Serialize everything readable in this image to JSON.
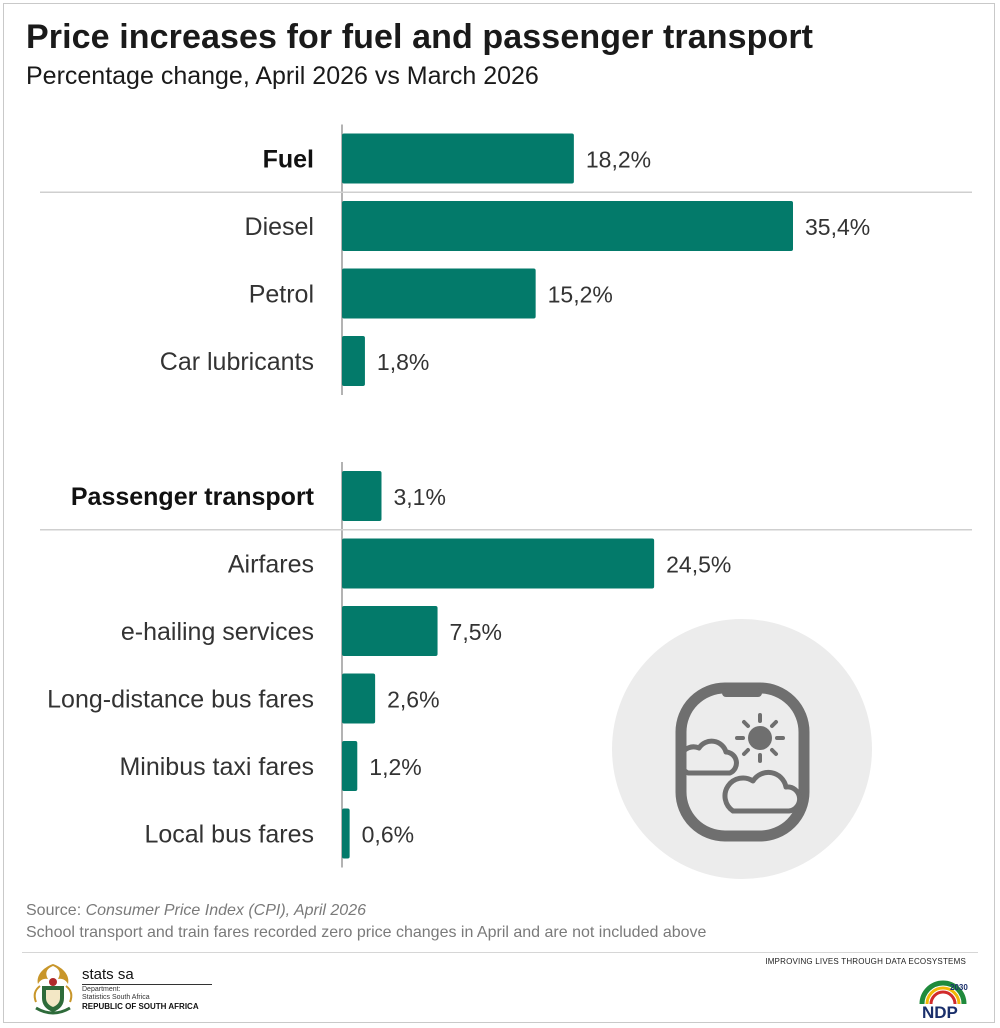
{
  "header": {
    "title": "Price increases for fuel and passenger transport",
    "subtitle": "Percentage change, April 2026 vs March 2026"
  },
  "chart_data": {
    "type": "bar",
    "orientation": "horizontal",
    "xlim": [
      0,
      35.4
    ],
    "groups": [
      {
        "header": {
          "label": "Fuel",
          "value": 18.2,
          "value_label": "18,2%"
        },
        "items": [
          {
            "label": "Diesel",
            "value": 35.4,
            "value_label": "35,4%"
          },
          {
            "label": "Petrol",
            "value": 15.2,
            "value_label": "15,2%"
          },
          {
            "label": "Car lubricants",
            "value": 1.8,
            "value_label": "1,8%"
          }
        ]
      },
      {
        "header": {
          "label": "Passenger transport",
          "value": 3.1,
          "value_label": "3,1%"
        },
        "items": [
          {
            "label": "Airfares",
            "value": 24.5,
            "value_label": "24,5%"
          },
          {
            "label": "e-hailing services",
            "value": 7.5,
            "value_label": "7,5%"
          },
          {
            "label": "Long-distance bus fares",
            "value": 2.6,
            "value_label": "2,6%"
          },
          {
            "label": "Minibus taxi fares",
            "value": 1.2,
            "value_label": "1,2%"
          },
          {
            "label": "Local bus fares",
            "value": 0.6,
            "value_label": "0,6%"
          }
        ]
      }
    ],
    "bar_color": "#037a6a"
  },
  "illustration": {
    "icon": "airplane-window-icon",
    "circle_color": "#ececec",
    "icon_color": "#6f6f6f"
  },
  "footer": {
    "source_prefix": "Source: ",
    "source_title": "Consumer Price Index (CPI), April 2026",
    "note": "School transport and train fares recorded zero price changes in April and are not included above",
    "tagline": "IMPROVING LIVES THROUGH DATA ECOSYSTEMS",
    "brand": "stats sa",
    "dept_line1": "Department:",
    "dept_line2": "Statistics South Africa",
    "dept_line3": "REPUBLIC OF SOUTH AFRICA",
    "ndp_label": "NDP",
    "ndp_year": "2030"
  }
}
